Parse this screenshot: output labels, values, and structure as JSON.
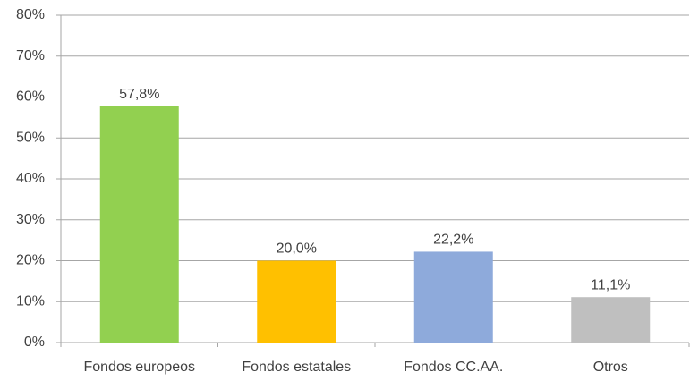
{
  "chart_data": {
    "type": "bar",
    "categories": [
      "Fondos europeos",
      "Fondos estatales",
      "Fondos CC.AA.",
      "Otros"
    ],
    "values": [
      57.8,
      20.0,
      22.2,
      11.1
    ],
    "value_labels": [
      "57,8%",
      "20,0%",
      "22,2%",
      "11,1%"
    ],
    "colors": [
      "#92d050",
      "#ffc000",
      "#8eaadb",
      "#bfbfbf"
    ],
    "ylim": [
      0,
      80
    ],
    "yticks": [
      {
        "value": 0,
        "label": "0%"
      },
      {
        "value": 10,
        "label": "10%"
      },
      {
        "value": 20,
        "label": "20%"
      },
      {
        "value": 30,
        "label": "30%"
      },
      {
        "value": 40,
        "label": "40%"
      },
      {
        "value": 50,
        "label": "50%"
      },
      {
        "value": 60,
        "label": "60%"
      },
      {
        "value": 70,
        "label": "70%"
      },
      {
        "value": 80,
        "label": "80%"
      }
    ],
    "grid": true
  }
}
